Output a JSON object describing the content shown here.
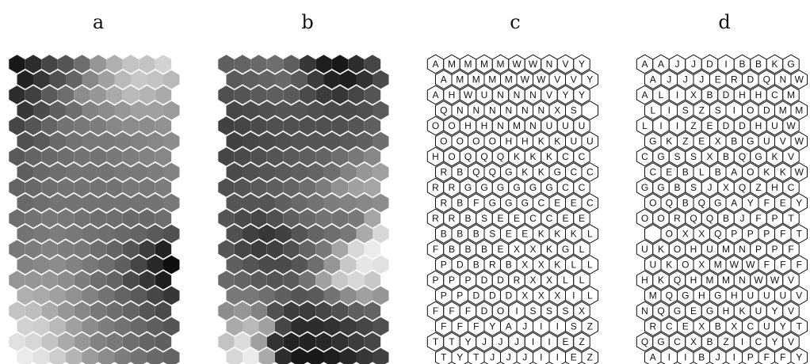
{
  "panels": [
    {
      "label": "a",
      "kind": "shade",
      "values": [
        [
          25,
          45,
          70,
          85,
          110,
          150,
          175,
          195,
          195,
          210
        ],
        [
          35,
          55,
          80,
          100,
          135,
          160,
          185,
          200,
          195,
          185
        ],
        [
          45,
          65,
          90,
          110,
          140,
          150,
          170,
          185,
          180,
          170
        ],
        [
          55,
          75,
          95,
          110,
          130,
          140,
          150,
          160,
          160,
          155
        ],
        [
          70,
          85,
          100,
          115,
          120,
          125,
          135,
          140,
          140,
          145
        ],
        [
          80,
          90,
          105,
          115,
          120,
          120,
          125,
          130,
          135,
          140
        ],
        [
          90,
          100,
          105,
          110,
          115,
          115,
          120,
          125,
          130,
          135
        ],
        [
          95,
          105,
          110,
          115,
          115,
          115,
          120,
          120,
          125,
          130
        ],
        [
          100,
          105,
          110,
          115,
          115,
          115,
          115,
          120,
          120,
          125
        ],
        [
          105,
          110,
          115,
          115,
          115,
          115,
          115,
          115,
          115,
          120
        ],
        [
          110,
          115,
          120,
          120,
          115,
          110,
          110,
          105,
          105,
          110
        ],
        [
          115,
          120,
          125,
          120,
          115,
          110,
          105,
          100,
          90,
          80
        ],
        [
          120,
          125,
          130,
          125,
          120,
          110,
          100,
          85,
          60,
          35
        ],
        [
          130,
          135,
          140,
          130,
          120,
          110,
          95,
          70,
          40,
          15
        ],
        [
          150,
          150,
          150,
          140,
          125,
          110,
          100,
          75,
          55,
          30
        ],
        [
          175,
          170,
          160,
          145,
          130,
          115,
          100,
          90,
          70,
          55
        ],
        [
          195,
          190,
          170,
          150,
          135,
          120,
          110,
          100,
          85,
          75
        ],
        [
          210,
          205,
          185,
          160,
          140,
          125,
          115,
          105,
          95,
          85
        ],
        [
          225,
          215,
          195,
          170,
          150,
          130,
          120,
          110,
          100,
          95
        ],
        [
          235,
          225,
          205,
          180,
          155,
          140,
          125,
          115,
          105,
          100
        ]
      ]
    },
    {
      "label": "b",
      "kind": "shade",
      "values": [
        [
          95,
          100,
          105,
          110,
          95,
          55,
          30,
          25,
          45,
          70
        ],
        [
          90,
          95,
          100,
          105,
          90,
          60,
          35,
          30,
          50,
          75
        ],
        [
          80,
          85,
          90,
          95,
          90,
          75,
          60,
          55,
          70,
          85
        ],
        [
          70,
          75,
          80,
          85,
          85,
          80,
          75,
          75,
          80,
          90
        ],
        [
          65,
          70,
          75,
          80,
          80,
          80,
          80,
          80,
          85,
          95
        ],
        [
          65,
          70,
          75,
          80,
          85,
          85,
          85,
          90,
          95,
          110
        ],
        [
          70,
          75,
          80,
          85,
          90,
          95,
          100,
          110,
          120,
          135
        ],
        [
          75,
          80,
          85,
          90,
          95,
          100,
          110,
          130,
          150,
          160
        ],
        [
          80,
          85,
          90,
          95,
          100,
          110,
          125,
          145,
          160,
          165
        ],
        [
          85,
          85,
          85,
          95,
          105,
          115,
          125,
          130,
          135,
          140
        ],
        [
          85,
          75,
          70,
          80,
          95,
          105,
          115,
          115,
          120,
          165
        ],
        [
          80,
          65,
          55,
          65,
          85,
          100,
          110,
          120,
          170,
          215
        ],
        [
          85,
          70,
          60,
          65,
          80,
          100,
          120,
          165,
          215,
          235
        ],
        [
          95,
          85,
          75,
          75,
          85,
          110,
          150,
          200,
          230,
          225
        ],
        [
          105,
          100,
          90,
          85,
          90,
          115,
          160,
          200,
          215,
          200
        ],
        [
          120,
          120,
          110,
          95,
          85,
          90,
          115,
          140,
          160,
          150
        ],
        [
          140,
          150,
          130,
          80,
          60,
          60,
          70,
          80,
          95,
          100
        ],
        [
          170,
          185,
          160,
          70,
          45,
          45,
          50,
          60,
          70,
          80
        ],
        [
          195,
          220,
          160,
          50,
          35,
          35,
          40,
          50,
          60,
          70
        ],
        [
          215,
          235,
          170,
          45,
          25,
          25,
          30,
          40,
          55,
          65
        ]
      ]
    },
    {
      "label": "c",
      "kind": "text",
      "rows": [
        "AMMMMWWNVY",
        "AMMMMWWVVY",
        "AHWUNNNVYY",
        "QNNNNNNXS ",
        "OOHHNMNUUU",
        "OOOOHHKKUU",
        "HOQQQKKKCC",
        "RBQQGKKGCC",
        "RRGGGGGGCC",
        "RBFGGGCEEC",
        "RRBSEECCEE",
        "BBBSEEKKKL",
        "FBBBEXXKGL",
        "PDBRBXXKLL",
        "PPPDDRXXLL",
        "PPDDDXXXIL",
        "FFFDOISSSX",
        "FFFYAJIISZ",
        "TTYJJJIIEZ",
        "TYTJJJIIEZ"
      ]
    },
    {
      "label": "d",
      "kind": "text",
      "rows": [
        "AAJJDIBBKG",
        "AJJJERDQNW",
        "ALIXBDHHCM",
        "LISZSIODMM",
        "LIIZEDDHUW",
        "GKZEXBGUVW",
        "CGSSXBQGKV",
        "CEBLBAOKKW",
        "GGBSJXQZHC",
        "OQBQGAYFEY",
        "OORQQBJFPT",
        " OXXQPPPFT",
        "UKOHUMNPPF",
        "UKOXMWWFFF",
        "HKQHMMNWWV",
        "MQGHGHUUUV",
        "NQGEGHKUYV",
        "RCEXBXCUYT",
        "QGCXBZICYV",
        "AIIBJIPFFY"
      ]
    }
  ]
}
